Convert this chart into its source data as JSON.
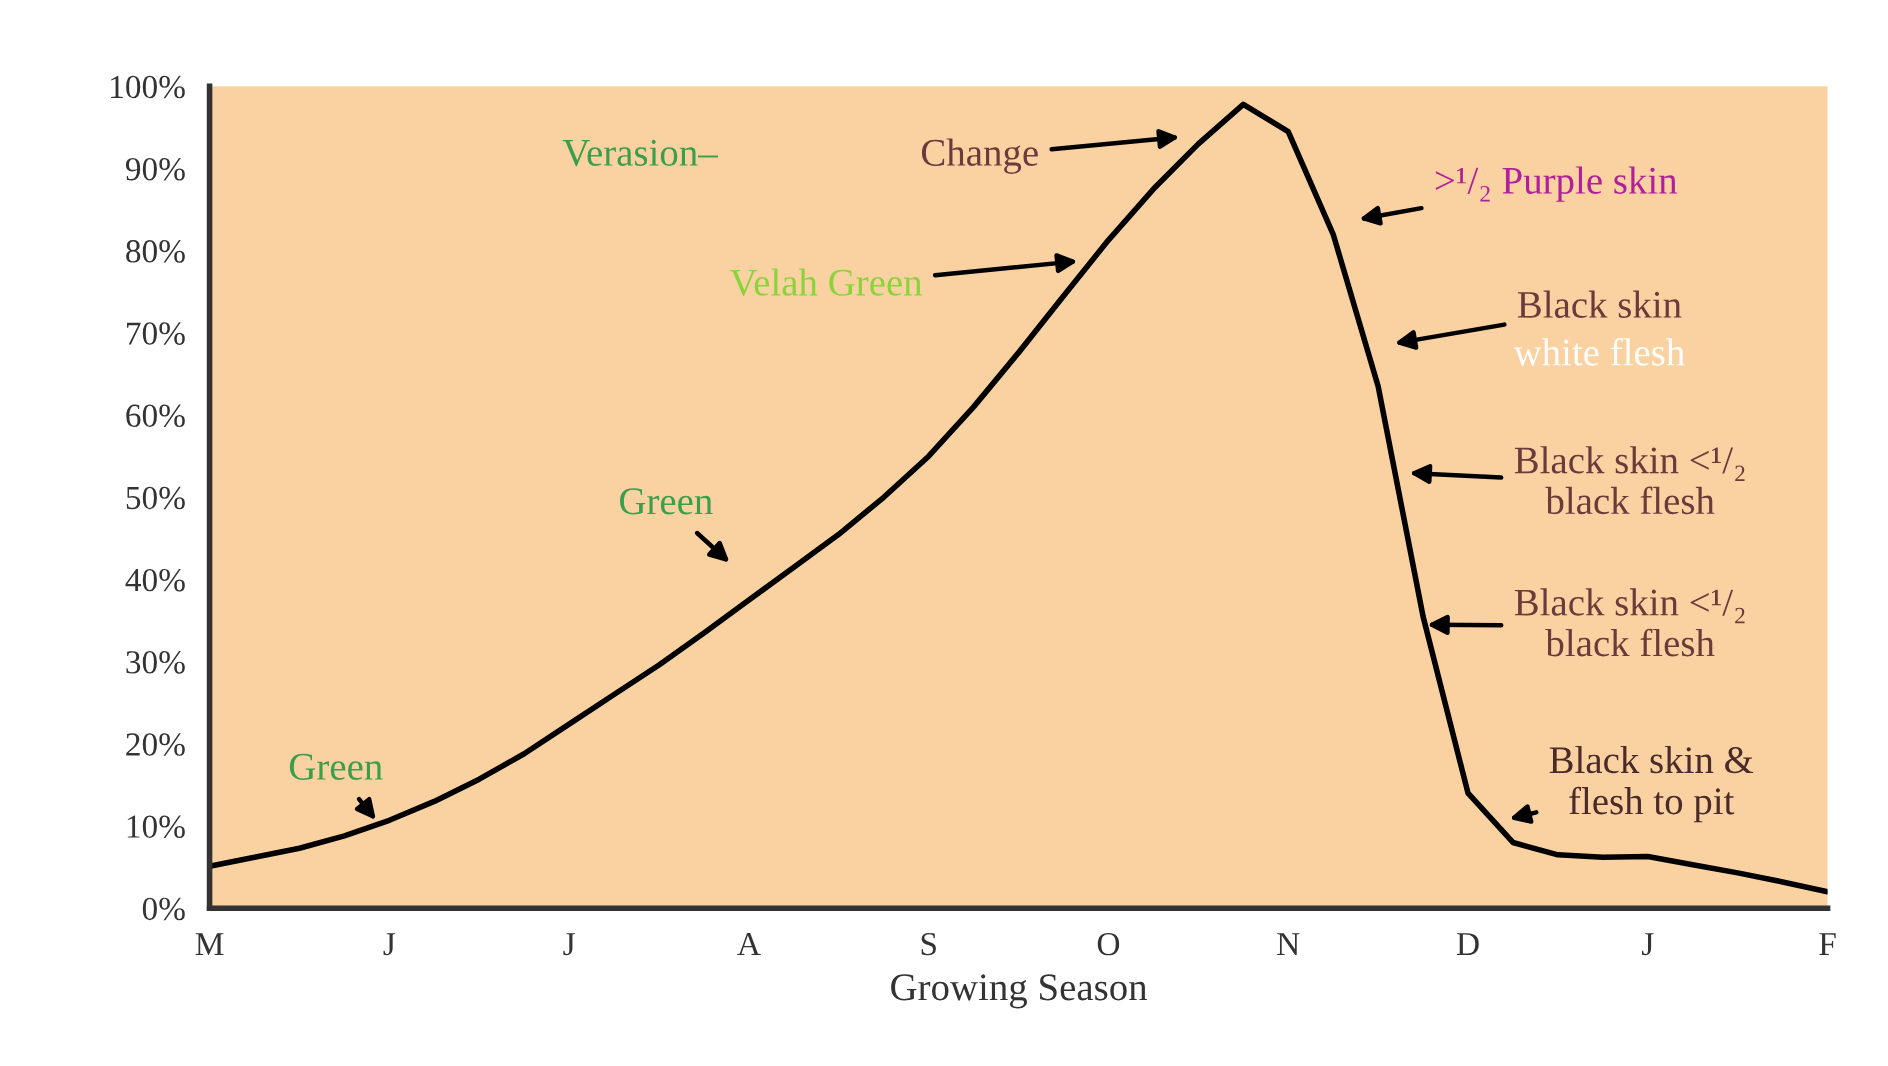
{
  "chart_data": {
    "type": "line",
    "xlabel": "Growing Season",
    "categories": [
      "M",
      null,
      null,
      null,
      "J",
      null,
      null,
      null,
      "J",
      null,
      null,
      null,
      "A",
      null,
      null,
      null,
      "S",
      null,
      null,
      null,
      "O",
      null,
      null,
      null,
      "N",
      null,
      null,
      null,
      "D",
      null,
      null,
      null,
      "J",
      null,
      null,
      null,
      "F"
    ],
    "series": [
      {
        "color": "#000000",
        "values": [
          5.1,
          6.2,
          7.3,
          8.8,
          10.7,
          13,
          15.7,
          18.8,
          22.4,
          26,
          29.6,
          33.5,
          37.5,
          41.5,
          45.5,
          50,
          55,
          61,
          67.6,
          74.5,
          81.3,
          87.5,
          93,
          97.8,
          94.5,
          82,
          63.5,
          35.5,
          14,
          8,
          6.5,
          6.2,
          6.3,
          5.3,
          4.3,
          3.2,
          2
        ]
      }
    ],
    "ylim": [
      0,
      100
    ],
    "yticks": [
      {
        "value": 0,
        "label": "0%"
      },
      {
        "value": 10,
        "label": "10%"
      },
      {
        "value": 20,
        "label": "20%"
      },
      {
        "value": 30,
        "label": "30%"
      },
      {
        "value": 40,
        "label": "40%"
      },
      {
        "value": 50,
        "label": "50%"
      },
      {
        "value": 60,
        "label": "60%"
      },
      {
        "value": 70,
        "label": "70%"
      },
      {
        "value": 80,
        "label": "80%"
      },
      {
        "value": 90,
        "label": "90%"
      },
      {
        "value": 100,
        "label": "100%"
      }
    ],
    "grid": false,
    "line_style": "solid",
    "annotations": [
      "Verasion–",
      "Green",
      "Green",
      "Velah Green",
      "Change",
      ">¹/₂ Purple skin",
      "Black skin",
      "white flesh",
      "Black skin <¹/₂\nblack flesh",
      "Black skin <¹/₂\nblack flesh",
      "Black skin &\nflesh to pit"
    ]
  }
}
